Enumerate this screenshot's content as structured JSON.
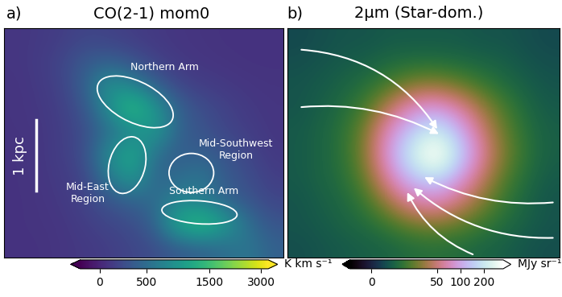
{
  "chart_data": [
    {
      "type": "image",
      "panel": "a)",
      "title": "CO(2-1) mom0",
      "color": "viridis",
      "tick_labels": false,
      "cells": [
        [
          100,
          120,
          150,
          200,
          180,
          150,
          120,
          100,
          90,
          80,
          80,
          80
        ],
        [
          100,
          130,
          200,
          350,
          400,
          300,
          180,
          120,
          100,
          90,
          80,
          80
        ],
        [
          90,
          120,
          180,
          400,
          900,
          700,
          400,
          200,
          150,
          120,
          100,
          90
        ],
        [
          90,
          110,
          160,
          300,
          800,
          1500,
          900,
          400,
          250,
          180,
          120,
          100
        ],
        [
          90,
          100,
          150,
          250,
          500,
          700,
          1000,
          400,
          300,
          200,
          150,
          100
        ],
        [
          80,
          100,
          150,
          250,
          800,
          1200,
          500,
          350,
          400,
          300,
          200,
          120
        ],
        [
          80,
          100,
          130,
          200,
          600,
          1000,
          400,
          500,
          600,
          350,
          250,
          150
        ],
        [
          80,
          90,
          120,
          180,
          300,
          400,
          500,
          700,
          600,
          400,
          300,
          200
        ],
        [
          80,
          90,
          100,
          150,
          200,
          250,
          400,
          1200,
          1500,
          1000,
          500,
          300
        ],
        [
          80,
          80,
          100,
          120,
          150,
          200,
          250,
          350,
          400,
          500,
          600,
          400
        ]
      ],
      "colorbar": {
        "label": "K km s⁻¹",
        "range": [
          -200,
          3300
        ],
        "ticks": [
          0,
          500,
          1500,
          3000
        ]
      },
      "annotations": [
        "Northern Arm",
        "Mid-East\nRegion",
        "Mid-Southwest\nRegion",
        "Southern Arm"
      ],
      "scale_bar": "1 kpc"
    },
    {
      "type": "image",
      "panel": "b)",
      "title": "2μm (Star-dom.)",
      "color": "cubehelix",
      "tick_labels": false,
      "cells": [
        [
          6,
          7,
          8,
          8,
          9,
          9,
          9,
          9,
          8,
          8,
          7,
          6
        ],
        [
          7,
          8,
          9,
          10,
          12,
          13,
          13,
          12,
          11,
          10,
          8,
          7
        ],
        [
          8,
          9,
          11,
          14,
          20,
          28,
          30,
          25,
          18,
          13,
          10,
          8
        ],
        [
          8,
          10,
          13,
          20,
          40,
          70,
          80,
          60,
          35,
          20,
          12,
          9
        ],
        [
          9,
          11,
          15,
          28,
          70,
          130,
          200,
          110,
          50,
          25,
          14,
          10
        ],
        [
          9,
          11,
          15,
          30,
          80,
          200,
          400,
          150,
          60,
          28,
          15,
          10
        ],
        [
          9,
          11,
          14,
          25,
          60,
          120,
          150,
          90,
          45,
          22,
          13,
          9
        ],
        [
          8,
          10,
          12,
          18,
          35,
          60,
          70,
          50,
          30,
          17,
          11,
          8
        ],
        [
          8,
          9,
          11,
          13,
          18,
          25,
          28,
          24,
          18,
          13,
          10,
          8
        ],
        [
          7,
          8,
          9,
          10,
          11,
          13,
          14,
          13,
          11,
          10,
          8,
          7
        ]
      ],
      "colorbar": {
        "label": "MJy sr⁻¹",
        "range": [
          -10,
          350
        ],
        "ticks": [
          0,
          50,
          100,
          200
        ]
      }
    }
  ]
}
